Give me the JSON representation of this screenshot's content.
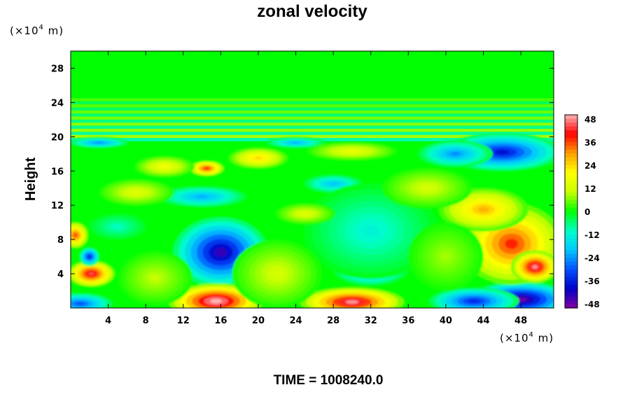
{
  "chart_data": {
    "type": "heatmap",
    "title": "zonal velocity",
    "ylabel": "Height",
    "xlabel": "",
    "x_unit": {
      "prefix": "(×10",
      "exp": "4",
      "suffix": " m)"
    },
    "y_unit": {
      "prefix": "(×10",
      "exp": "4",
      "suffix": " m)"
    },
    "xlim": [
      0,
      51.5
    ],
    "ylim": [
      0,
      30
    ],
    "x_ticks": [
      "4",
      "8",
      "12",
      "16",
      "20",
      "24",
      "28",
      "32",
      "36",
      "40",
      "44",
      "48"
    ],
    "y_ticks": [
      "4",
      "8",
      "12",
      "16",
      "20",
      "24",
      "28"
    ],
    "colorbar": {
      "range": [
        -50,
        50
      ],
      "ticks": [
        "48",
        "36",
        "24",
        "12",
        "0",
        "-12",
        "-24",
        "-36",
        "-48"
      ],
      "colors": [
        "#8000a0",
        "#0000c8",
        "#0050ff",
        "#00c8ff",
        "#00ffc8",
        "#00ff00",
        "#c8ff00",
        "#ffff00",
        "#ffa000",
        "#ff0000",
        "#ffb4b4"
      ]
    },
    "background_value": 0,
    "features": [
      {
        "x": 16,
        "y": 6.5,
        "sx": 3.2,
        "sy": 2.6,
        "value": -44
      },
      {
        "x": 15.5,
        "y": 0.8,
        "sx": 3.2,
        "sy": 1.3,
        "value": 52
      },
      {
        "x": 30,
        "y": 0.7,
        "sx": 3.5,
        "sy": 1.1,
        "value": 48
      },
      {
        "x": 48,
        "y": 1.0,
        "sx": 3.5,
        "sy": 1.3,
        "value": -48
      },
      {
        "x": 43,
        "y": 0.8,
        "sx": 3.0,
        "sy": 1.0,
        "value": -35
      },
      {
        "x": 47,
        "y": 7.5,
        "sx": 3.5,
        "sy": 3.0,
        "value": 38
      },
      {
        "x": 49.5,
        "y": 4.8,
        "sx": 1.6,
        "sy": 1.2,
        "value": 48
      },
      {
        "x": 44,
        "y": 11.5,
        "sx": 3.0,
        "sy": 1.6,
        "value": 28
      },
      {
        "x": 46,
        "y": 18.2,
        "sx": 4.0,
        "sy": 1.4,
        "value": -38
      },
      {
        "x": 41,
        "y": 18.0,
        "sx": 2.5,
        "sy": 1.0,
        "value": -25
      },
      {
        "x": 2.2,
        "y": 4.0,
        "sx": 1.6,
        "sy": 1.0,
        "value": 44
      },
      {
        "x": 2.0,
        "y": 6.0,
        "sx": 0.7,
        "sy": 0.7,
        "value": -36
      },
      {
        "x": 0.5,
        "y": 8.5,
        "sx": 0.9,
        "sy": 1.0,
        "value": 36
      },
      {
        "x": 1.0,
        "y": 0.5,
        "sx": 2.2,
        "sy": 0.8,
        "value": -30
      },
      {
        "x": 20,
        "y": 17.5,
        "sx": 2.0,
        "sy": 0.8,
        "value": 24
      },
      {
        "x": 14.5,
        "y": 16.3,
        "sx": 1.2,
        "sy": 0.6,
        "value": 38
      },
      {
        "x": 10,
        "y": 16.5,
        "sx": 2.0,
        "sy": 0.8,
        "value": 18
      },
      {
        "x": 14,
        "y": 13.0,
        "sx": 3.0,
        "sy": 0.8,
        "value": -22
      },
      {
        "x": 28,
        "y": 14.5,
        "sx": 2.0,
        "sy": 0.7,
        "value": -20
      },
      {
        "x": 32,
        "y": 4.5,
        "sx": 2.5,
        "sy": 1.2,
        "value": -26
      },
      {
        "x": 32,
        "y": 9.0,
        "sx": 4.5,
        "sy": 3.5,
        "value": -12
      },
      {
        "x": 24,
        "y": 19.3,
        "sx": 2.0,
        "sy": 0.4,
        "value": -22
      },
      {
        "x": 3,
        "y": 19.3,
        "sx": 2.0,
        "sy": 0.4,
        "value": -25
      },
      {
        "x": 30,
        "y": 18.3,
        "sx": 3.0,
        "sy": 0.7,
        "value": 16
      },
      {
        "x": 7,
        "y": 13.5,
        "sx": 2.5,
        "sy": 1.0,
        "value": 14
      },
      {
        "x": 25,
        "y": 11.0,
        "sx": 2.0,
        "sy": 0.8,
        "value": 14
      },
      {
        "x": 22,
        "y": 4.0,
        "sx": 3.0,
        "sy": 2.5,
        "value": 12
      },
      {
        "x": 9,
        "y": 3.5,
        "sx": 2.5,
        "sy": 2.0,
        "value": 10
      },
      {
        "x": 38,
        "y": 14.0,
        "sx": 3.0,
        "sy": 1.5,
        "value": 12
      },
      {
        "x": 5,
        "y": 9.5,
        "sx": 2.0,
        "sy": 1.0,
        "value": -10
      },
      {
        "x": 40,
        "y": 6.0,
        "sx": 2.5,
        "sy": 2.5,
        "value": 8
      }
    ],
    "stratosphere_bands": {
      "from": 19.5,
      "to": 24.5,
      "amplitude": 9
    }
  },
  "footer": {
    "time_label": "TIME = 1008240.0"
  }
}
